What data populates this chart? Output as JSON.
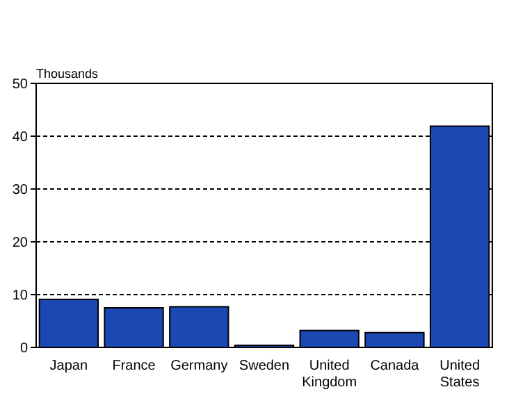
{
  "chart_data": {
    "type": "bar",
    "ylabel": "Thousands",
    "categories": [
      "Japan",
      "France",
      "Germany",
      "Sweden",
      "United Kingdom",
      "Canada",
      "United States"
    ],
    "values": [
      9.1,
      7.5,
      7.7,
      0.4,
      3.2,
      2.8,
      41.9
    ],
    "color": "#1c48b4",
    "ylim": [
      0,
      50
    ],
    "yticks": [
      0,
      10,
      20,
      30,
      40,
      50
    ],
    "grid": "y"
  }
}
